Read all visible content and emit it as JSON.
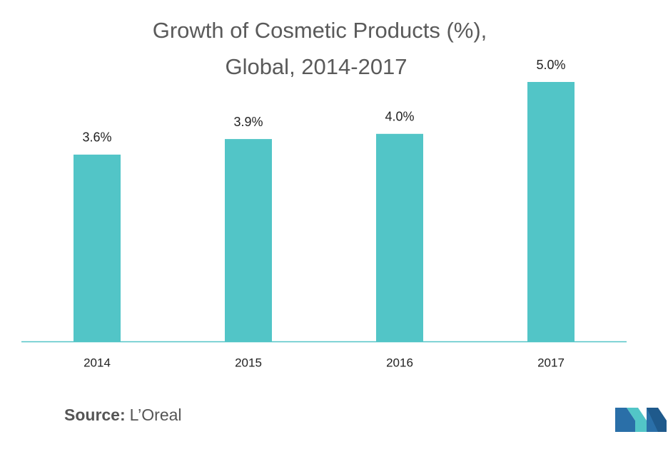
{
  "chart_data": {
    "type": "bar",
    "title": [
      "Growth of Cosmetic Products (%),",
      "Global, 2014-2017"
    ],
    "categories": [
      "2014",
      "2015",
      "2016",
      "2017"
    ],
    "values": [
      3.6,
      3.9,
      4.0,
      5.0
    ],
    "value_labels": [
      "3.6%",
      "3.9%",
      "4.0%",
      "5.0%"
    ],
    "color": "#52c5c7",
    "source": {
      "label": "Source:",
      "text": "L’Oreal"
    }
  }
}
